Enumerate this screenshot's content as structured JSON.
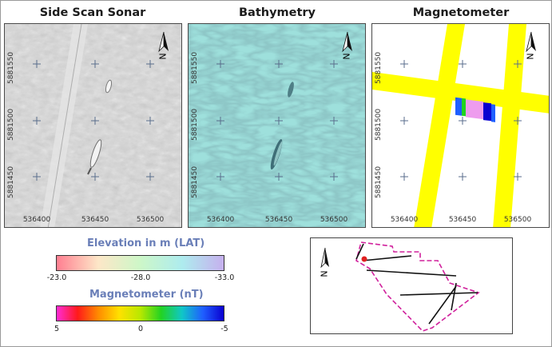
{
  "panels": [
    {
      "title": "Side Scan Sonar",
      "bg": "#d3d3d3"
    },
    {
      "title": "Bathymetry",
      "bg": "#9ee0dc"
    },
    {
      "title": "Magnetometer",
      "bg": "#ffffff"
    }
  ],
  "axes": {
    "y_ticks": [
      "5881550",
      "5881500",
      "5881450"
    ],
    "x_ticks": [
      "536400",
      "536450",
      "536500"
    ]
  },
  "north_label": "N",
  "elevation_legend": {
    "title": "Elevation in m (LAT)",
    "ticks": [
      "-23.0",
      "-28.0",
      "-33.0"
    ],
    "colors": [
      "#ff7f91",
      "#fde7c8",
      "#cdf7c8",
      "#aeecee",
      "#c6b0ee"
    ]
  },
  "magnetometer_legend": {
    "title": "Magnetometer (nT)",
    "ticks": [
      "5",
      "0",
      "-5"
    ],
    "colors": [
      "#ff2bd6",
      "#ff1a1a",
      "#ff8c00",
      "#ffe100",
      "#b9e800",
      "#22d322",
      "#10c7c7",
      "#1f5fff",
      "#0a00d0"
    ]
  },
  "colors": {
    "track": "#ffff00",
    "grid_cross": "#5a6e8c",
    "survey_outline": "#d0209c",
    "track_line": "#111111",
    "location_marker": "#e02020"
  }
}
